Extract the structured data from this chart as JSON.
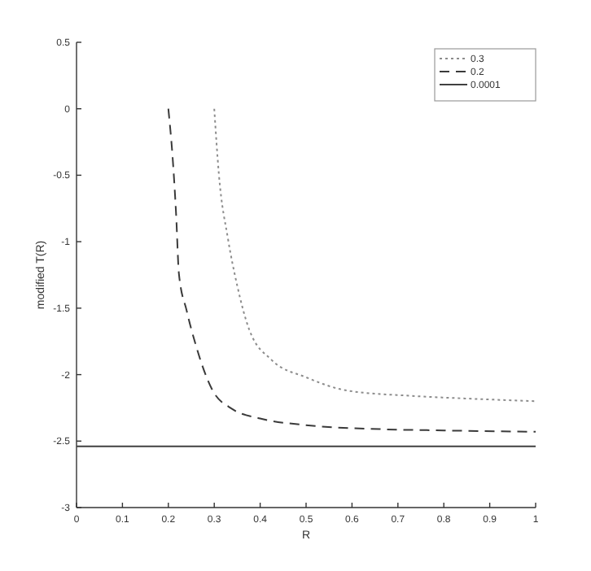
{
  "chart_data": {
    "type": "line",
    "xlabel": "R",
    "ylabel": "modified T(R)",
    "xlim": [
      0,
      1
    ],
    "ylim": [
      -3,
      0.5
    ],
    "xticks": [
      0,
      0.1,
      0.2,
      0.3,
      0.4,
      0.5,
      0.6,
      0.7,
      0.8,
      0.9,
      1
    ],
    "yticks": [
      -3,
      -2.5,
      -2,
      -1.5,
      -1,
      -0.5,
      0,
      0.5
    ],
    "legend": "top right",
    "grid": false,
    "series": [
      {
        "name": "0.3",
        "color": "#8c8c8c",
        "line_style": "dotted",
        "x": [
          0.3,
          0.31,
          0.33,
          0.35,
          0.376,
          0.425,
          0.5,
          0.59,
          0.73,
          0.85,
          1
        ],
        "values": [
          0,
          -0.49,
          -0.98,
          -1.33,
          -1.66,
          -1.89,
          -2.02,
          -2.12,
          -2.16,
          -2.18,
          -2.2
        ]
      },
      {
        "name": "0.2",
        "color": "#3a3a3a",
        "line_style": "dashed",
        "x": [
          0.2,
          0.21,
          0.217,
          0.223,
          0.24,
          0.26,
          0.295,
          0.34,
          0.4,
          0.5,
          0.66,
          0.8,
          1
        ],
        "values": [
          0,
          -0.4,
          -0.8,
          -1.24,
          -1.52,
          -1.78,
          -2.11,
          -2.26,
          -2.33,
          -2.38,
          -2.41,
          -2.42,
          -2.43
        ]
      },
      {
        "name": "0.0001",
        "color": "#404040",
        "line_style": "solid",
        "x": [
          0,
          1
        ],
        "values": [
          -2.54,
          -2.54
        ]
      }
    ]
  }
}
